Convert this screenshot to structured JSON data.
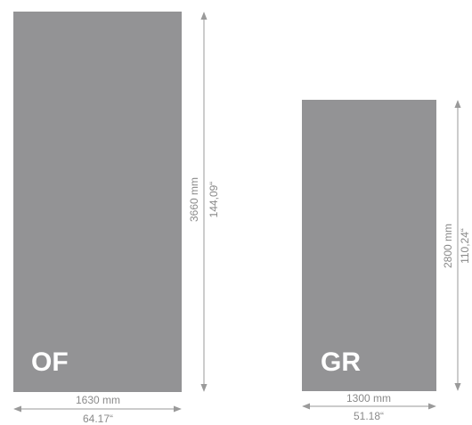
{
  "colors": {
    "panel": "#939395",
    "dimension": "#9a9a9a",
    "dimension_text": "#8a8a8a",
    "label": "#ffffff"
  },
  "panels": {
    "of": {
      "label": "OF",
      "height_mm": "3660 mm",
      "height_in": "144,09“",
      "width_mm": "1630 mm",
      "width_in": "64.17“"
    },
    "gr": {
      "label": "GR",
      "height_mm": "2800 mm",
      "height_in": "110,24“",
      "width_mm": "1300 mm",
      "width_in": "51.18“"
    }
  }
}
